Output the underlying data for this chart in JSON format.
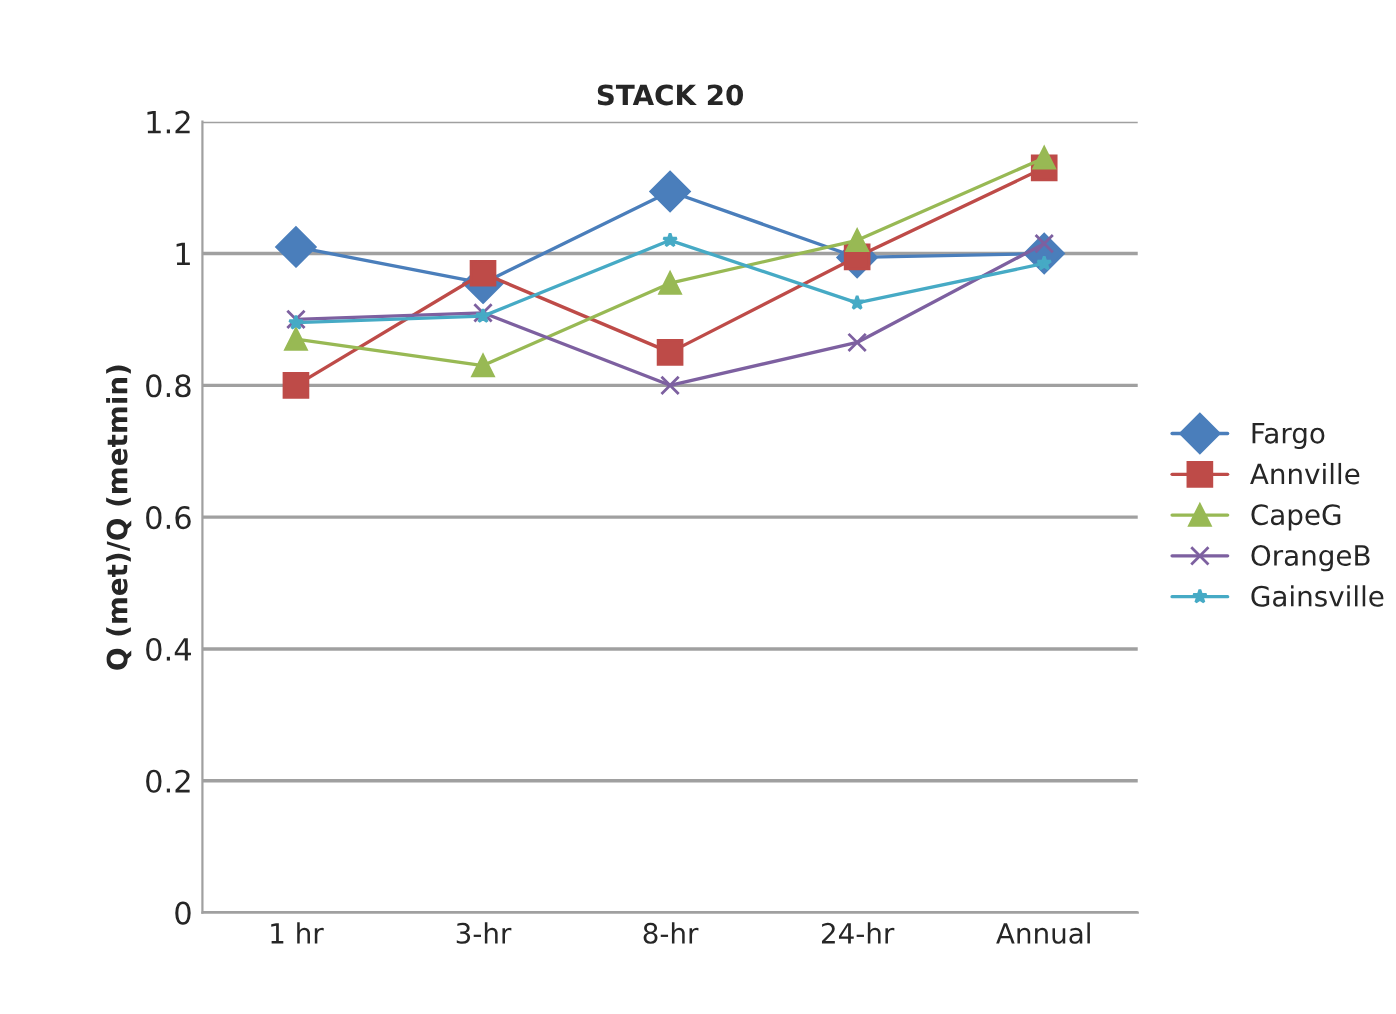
{
  "chart_data": {
    "type": "line",
    "title": "STACK 20",
    "ylabel": "Q (met)/Q (metmin)",
    "categories": [
      "1 hr",
      "3-hr",
      "8-hr",
      "24-hr",
      "Annual"
    ],
    "series": [
      {
        "name": "Fargo",
        "color": "#4a7ebb",
        "marker": "diamond",
        "values": [
          1.01,
          0.955,
          1.094,
          0.994,
          1.0
        ]
      },
      {
        "name": "Annville",
        "color": "#be4b48",
        "marker": "square",
        "values": [
          0.8,
          0.97,
          0.85,
          0.995,
          1.13
        ]
      },
      {
        "name": "CapeG",
        "color": "#98b954",
        "marker": "triangle",
        "values": [
          0.87,
          0.83,
          0.955,
          1.02,
          1.145
        ]
      },
      {
        "name": "OrangeB",
        "color": "#7d60a0",
        "marker": "cross",
        "values": [
          0.9,
          0.91,
          0.8,
          0.865,
          1.015
        ]
      },
      {
        "name": "Gainsville",
        "color": "#46aac5",
        "marker": "star",
        "values": [
          0.895,
          0.905,
          1.02,
          0.925,
          0.985
        ]
      }
    ],
    "ylim": [
      0,
      1.2
    ],
    "yticks": [
      0,
      0.2,
      0.4,
      0.6,
      0.8,
      1,
      1.2
    ],
    "grid": "y",
    "legend": "right"
  }
}
